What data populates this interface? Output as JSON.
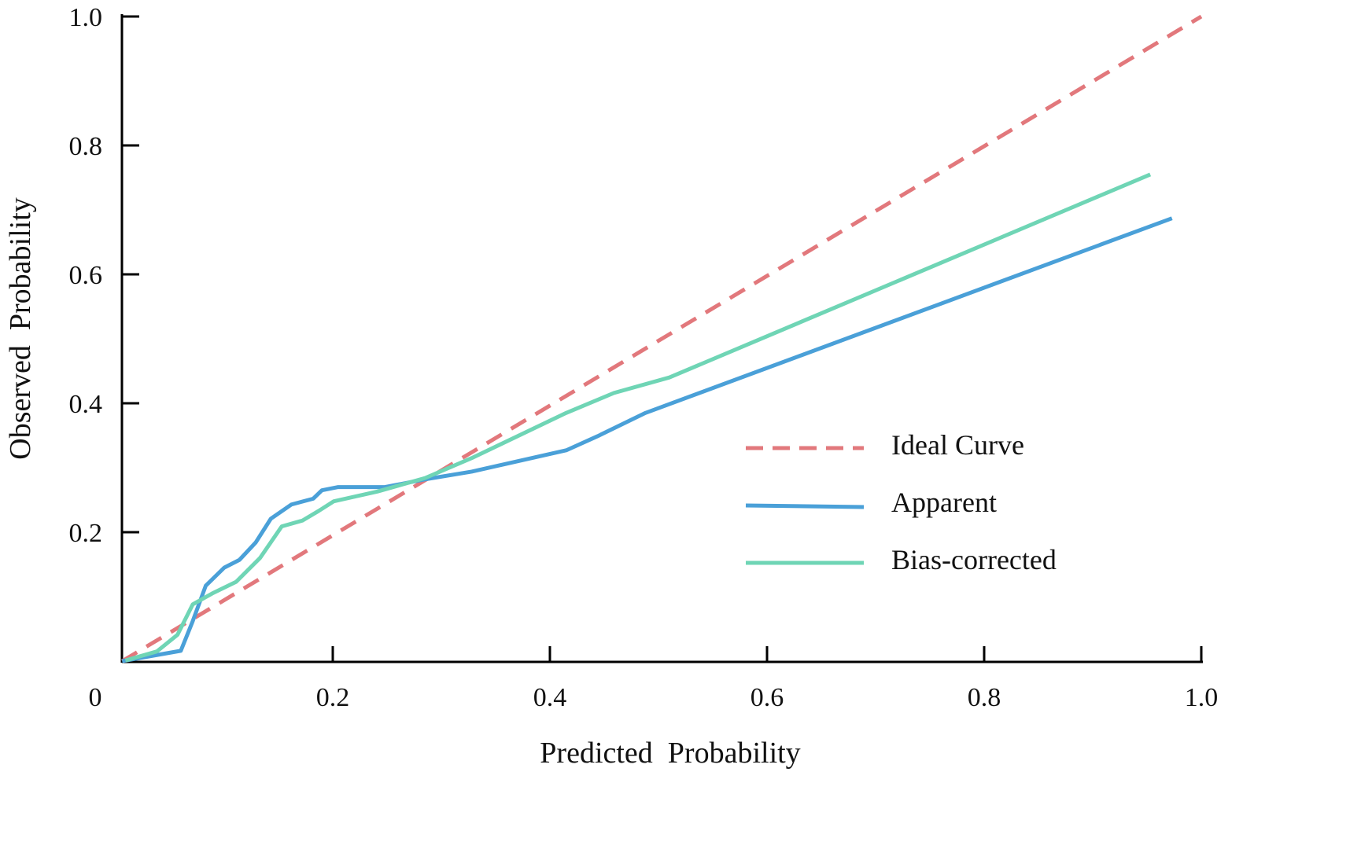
{
  "chart_data": {
    "type": "line",
    "title": "",
    "xlabel": "Predicted  Probability",
    "ylabel": "Observed  Probability",
    "xlim": [
      0,
      1.0
    ],
    "ylim": [
      0,
      1.0
    ],
    "x_ticks": [
      0.2,
      0.4,
      0.6,
      0.8,
      1.0
    ],
    "x_tick_labels": [
      "0.2",
      "0.4",
      "0.6",
      "0.8",
      "1.0"
    ],
    "y_ticks": [
      0.2,
      0.4,
      0.6,
      0.8,
      1.0
    ],
    "y_tick_labels": [
      "0.2",
      "0.4",
      "0.6",
      "0.8",
      "1.0"
    ],
    "origin_label": "0",
    "grid": false,
    "legend_position": "center-right",
    "series": [
      {
        "name": "Ideal Curve",
        "color": "#e2787c",
        "dashed": true,
        "x": [
          0.006,
          1.0
        ],
        "y": [
          0.0,
          1.0
        ]
      },
      {
        "name": "Apparent",
        "color": "#4aa0d8",
        "dashed": false,
        "x": [
          0.006,
          0.06,
          0.071,
          0.083,
          0.1,
          0.114,
          0.129,
          0.143,
          0.162,
          0.182,
          0.19,
          0.205,
          0.248,
          0.285,
          0.328,
          0.415,
          0.444,
          0.488,
          0.973
        ],
        "y": [
          0.0,
          0.016,
          0.062,
          0.117,
          0.145,
          0.157,
          0.184,
          0.221,
          0.243,
          0.252,
          0.265,
          0.27,
          0.27,
          0.282,
          0.294,
          0.327,
          0.349,
          0.385,
          0.687
        ]
      },
      {
        "name": "Bias-corrected",
        "color": "#6fd5b5",
        "dashed": false,
        "x": [
          0.009,
          0.038,
          0.057,
          0.071,
          0.089,
          0.111,
          0.133,
          0.153,
          0.172,
          0.187,
          0.201,
          0.241,
          0.285,
          0.328,
          0.415,
          0.459,
          0.51,
          0.953
        ],
        "y": [
          0.001,
          0.015,
          0.041,
          0.088,
          0.105,
          0.123,
          0.16,
          0.209,
          0.218,
          0.233,
          0.248,
          0.263,
          0.284,
          0.315,
          0.385,
          0.416,
          0.44,
          0.755
        ]
      }
    ]
  }
}
